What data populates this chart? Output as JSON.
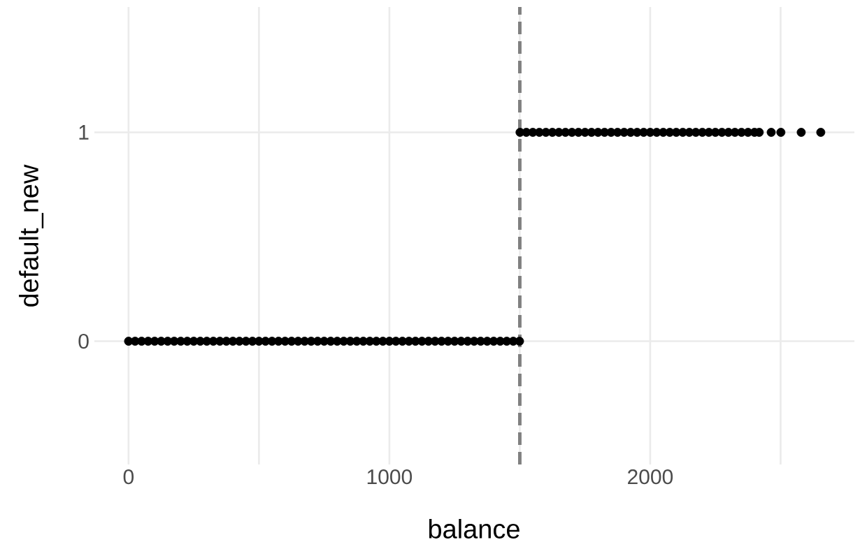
{
  "chart_data": {
    "type": "scatter",
    "xlabel": "balance",
    "ylabel": "default_new",
    "x": [
      0,
      25,
      50,
      75,
      100,
      125,
      150,
      175,
      200,
      225,
      250,
      275,
      300,
      325,
      350,
      375,
      400,
      425,
      450,
      475,
      500,
      525,
      550,
      575,
      600,
      625,
      650,
      675,
      700,
      725,
      750,
      775,
      800,
      825,
      850,
      875,
      900,
      925,
      950,
      975,
      1000,
      1025,
      1050,
      1075,
      1100,
      1125,
      1150,
      1175,
      1200,
      1225,
      1250,
      1275,
      1300,
      1325,
      1350,
      1375,
      1400,
      1425,
      1450,
      1475,
      1499,
      1501,
      1525,
      1550,
      1575,
      1600,
      1625,
      1650,
      1675,
      1700,
      1725,
      1750,
      1775,
      1800,
      1825,
      1850,
      1875,
      1900,
      1925,
      1950,
      1975,
      2000,
      2025,
      2050,
      2075,
      2100,
      2125,
      2150,
      2175,
      2200,
      2225,
      2250,
      2275,
      2300,
      2325,
      2350,
      2375,
      2400,
      2418,
      2464,
      2501,
      2579,
      2654
    ],
    "values": [
      0,
      0,
      0,
      0,
      0,
      0,
      0,
      0,
      0,
      0,
      0,
      0,
      0,
      0,
      0,
      0,
      0,
      0,
      0,
      0,
      0,
      0,
      0,
      0,
      0,
      0,
      0,
      0,
      0,
      0,
      0,
      0,
      0,
      0,
      0,
      0,
      0,
      0,
      0,
      0,
      0,
      0,
      0,
      0,
      0,
      0,
      0,
      0,
      0,
      0,
      0,
      0,
      0,
      0,
      0,
      0,
      0,
      0,
      0,
      0,
      0,
      1,
      1,
      1,
      1,
      1,
      1,
      1,
      1,
      1,
      1,
      1,
      1,
      1,
      1,
      1,
      1,
      1,
      1,
      1,
      1,
      1,
      1,
      1,
      1,
      1,
      1,
      1,
      1,
      1,
      1,
      1,
      1,
      1,
      1,
      1,
      1,
      1,
      1,
      1,
      1,
      1,
      1
    ],
    "color": "#000000",
    "marker": "circle",
    "xlim": [
      -131,
      2783
    ],
    "ylim": [
      -0.59,
      1.6
    ],
    "xticks": [
      0,
      {
        "value": 500,
        "label": null
      },
      1000,
      {
        "value": 1500,
        "label": null
      },
      2000,
      {
        "value": 2500,
        "label": null
      }
    ],
    "yticks": [
      0,
      1
    ],
    "grid": true,
    "ref_lines": [
      {
        "axis": "x",
        "value": 1500,
        "color": "#808080",
        "line_style": "dashed"
      }
    ]
  }
}
